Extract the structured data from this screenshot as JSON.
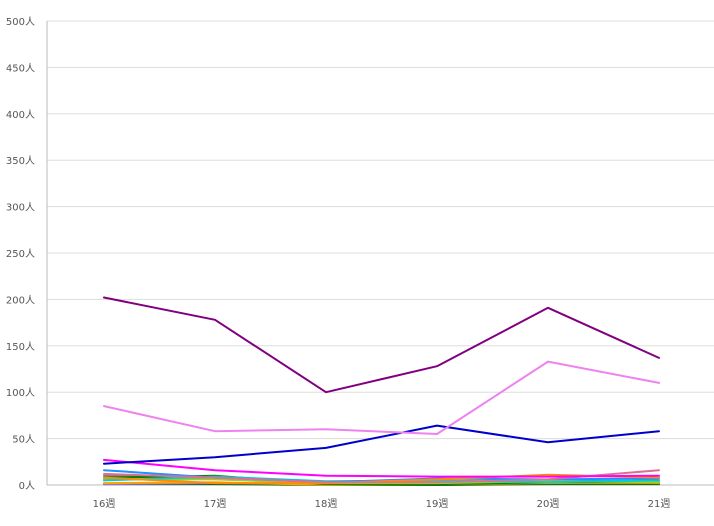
{
  "chart_data": {
    "type": "line",
    "title": "",
    "xlabel": "",
    "ylabel": "",
    "ylim": [
      0,
      500
    ],
    "y_ticks": [
      "0人",
      "50人",
      "100人",
      "150人",
      "200人",
      "250人",
      "300人",
      "350人",
      "400人",
      "450人",
      "500人"
    ],
    "categories": [
      "16週",
      "17週",
      "18週",
      "19週",
      "20週",
      "21週"
    ],
    "grid": true,
    "legend": "none",
    "series": [
      {
        "color": "#800080",
        "values": [
          202,
          178,
          100,
          128,
          191,
          137
        ]
      },
      {
        "color": "#ee82ee",
        "values": [
          85,
          58,
          60,
          55,
          133,
          110
        ]
      },
      {
        "color": "#0000cd",
        "values": [
          23,
          30,
          40,
          64,
          46,
          58
        ]
      },
      {
        "color": "#ff00ff",
        "values": [
          27,
          16,
          10,
          9,
          9,
          10
        ]
      },
      {
        "color": "#db7093",
        "values": [
          12,
          8,
          3,
          3,
          6,
          16
        ]
      },
      {
        "color": "#ff8c00",
        "values": [
          8,
          2,
          2,
          6,
          11,
          8
        ]
      },
      {
        "color": "#1e90ff",
        "values": [
          16,
          8,
          3,
          7,
          6,
          7
        ]
      },
      {
        "color": "#00ced1",
        "values": [
          5,
          9,
          4,
          5,
          3,
          5
        ]
      },
      {
        "color": "#9acd32",
        "values": [
          6,
          6,
          2,
          2,
          4,
          3
        ]
      },
      {
        "color": "#008000",
        "values": [
          8,
          10,
          1,
          1,
          3,
          3
        ]
      },
      {
        "color": "#808080",
        "values": [
          10,
          7,
          1,
          3,
          4,
          5
        ]
      },
      {
        "color": "#ffa500",
        "values": [
          2,
          3,
          0,
          1,
          2,
          2
        ]
      },
      {
        "color": "#9370db",
        "values": [
          1,
          2,
          1,
          2,
          3,
          2
        ]
      },
      {
        "color": "#006400",
        "values": [
          1,
          1,
          0,
          0,
          1,
          1
        ]
      }
    ]
  }
}
